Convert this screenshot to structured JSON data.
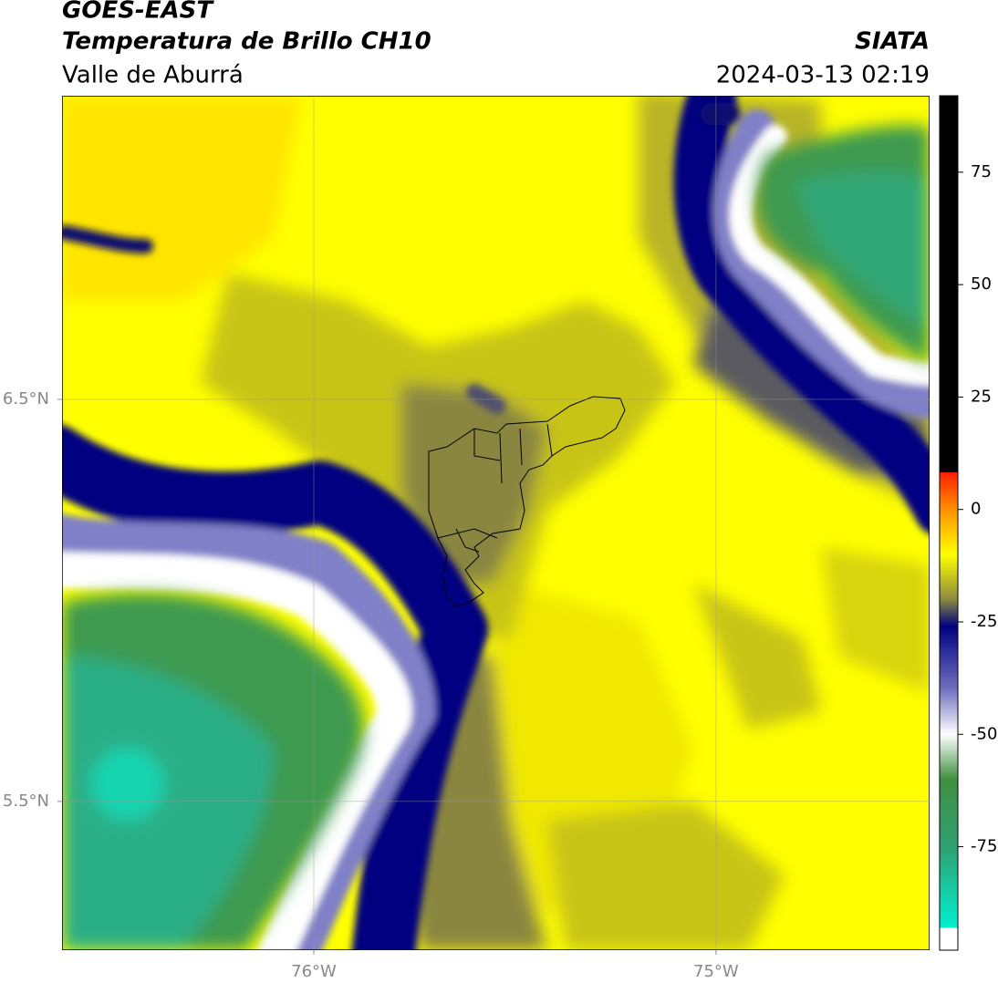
{
  "chart_data": {
    "type": "map",
    "title": "GOES-EAST",
    "subtitle": "Temperatura de Brillo CH10",
    "region": "Valle de Aburrá",
    "source": "SIATA",
    "timestamp": "2024-03-13 02:19",
    "xlim": [
      -76.626,
      -74.469
    ],
    "ylim": [
      5.13,
      7.255
    ],
    "xticks": [
      {
        "value": -76,
        "label": "76°W"
      },
      {
        "value": -75,
        "label": "75°W"
      }
    ],
    "yticks": [
      {
        "value": 6.5,
        "label": "6.5°N"
      },
      {
        "value": 5.5,
        "label": "5.5°N"
      }
    ],
    "grid": true,
    "colorbar": {
      "lim": [
        -98,
        92
      ],
      "ticks": [
        75,
        50,
        25,
        0,
        -25,
        -50,
        -75
      ],
      "stops": [
        {
          "value": 92,
          "color": "#000000"
        },
        {
          "value": 8.3,
          "color": "#000000"
        },
        {
          "value": 8.3,
          "color": "#ff2000"
        },
        {
          "value": 0,
          "color": "#ff9000"
        },
        {
          "value": -10,
          "color": "#ffff00"
        },
        {
          "value": -20,
          "color": "#8c8a40"
        },
        {
          "value": -26,
          "color": "#000080"
        },
        {
          "value": -40,
          "color": "#7070c0"
        },
        {
          "value": -50,
          "color": "#ffffff"
        },
        {
          "value": -60,
          "color": "#409040"
        },
        {
          "value": -75,
          "color": "#30a070"
        },
        {
          "value": -93,
          "color": "#00f0d0"
        },
        {
          "value": -93,
          "color": "#ffffff"
        },
        {
          "value": -98,
          "color": "#ffffff"
        }
      ]
    }
  }
}
